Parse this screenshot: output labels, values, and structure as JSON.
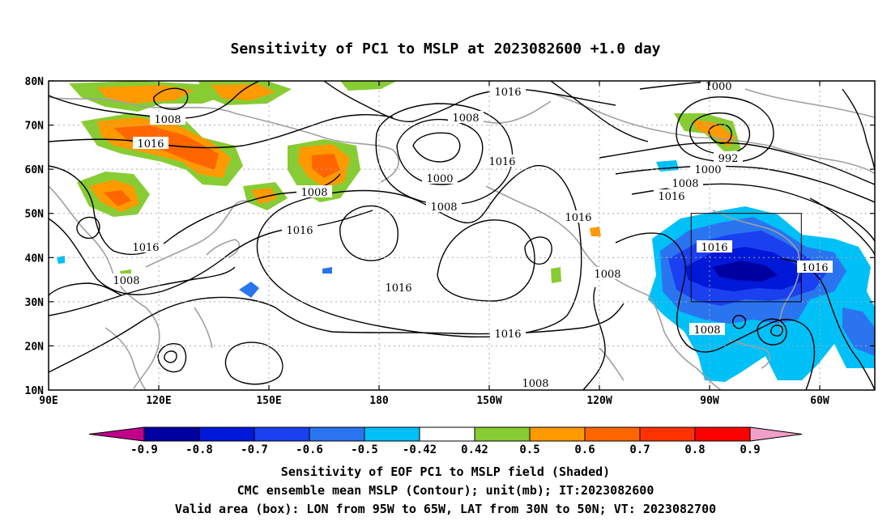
{
  "title": "Sensitivity of PC1 to MSLP at 2023082600 +1.0 day",
  "lat_labels": [
    "80N",
    "70N",
    "60N",
    "50N",
    "40N",
    "30N",
    "20N",
    "10N"
  ],
  "lon_labels": [
    "90E",
    "120E",
    "150E",
    "180",
    "150W",
    "120W",
    "90W",
    "60W"
  ],
  "contour_labels": [
    {
      "text": "1008"
    },
    {
      "text": "1016"
    },
    {
      "text": "1016"
    },
    {
      "text": "1008"
    },
    {
      "text": "1016"
    },
    {
      "text": "1008"
    },
    {
      "text": "1016"
    },
    {
      "text": "1008"
    },
    {
      "text": "1000"
    },
    {
      "text": "1008"
    },
    {
      "text": "1016"
    },
    {
      "text": "1016"
    },
    {
      "text": "1016"
    },
    {
      "text": "1016"
    },
    {
      "text": "1008"
    },
    {
      "text": "1008"
    },
    {
      "text": "1000"
    },
    {
      "text": "992"
    },
    {
      "text": "1000"
    },
    {
      "text": "1008"
    },
    {
      "text": "1016"
    },
    {
      "text": "1016"
    },
    {
      "text": "1016"
    },
    {
      "text": "1008"
    },
    {
      "text": "1016"
    }
  ],
  "colorbar": {
    "labels": [
      "-0.9",
      "-0.8",
      "-0.7",
      "-0.6",
      "-0.5",
      "-0.42",
      "0.42",
      "0.5",
      "0.6",
      "0.7",
      "0.8",
      "0.9"
    ],
    "colors": [
      "#0000a0",
      "#0018d8",
      "#1a40f0",
      "#2a74f0",
      "#00c0f8",
      "#ffffff",
      "#88cc33",
      "#ff9900",
      "#ff6600",
      "#ff3300",
      "#ff0000"
    ],
    "left_tri": "#c0008a",
    "right_tri": "#f0a0c8"
  },
  "captions": {
    "line1": "Sensitivity of EOF PC1 to MSLP field (Shaded)",
    "line2": "CMC ensemble mean MSLP (Contour); unit(mb); IT:2023082600",
    "line3": "Valid area (box): LON from 95W to 65W, LAT from 30N to 50N; VT: 2023082700"
  }
}
